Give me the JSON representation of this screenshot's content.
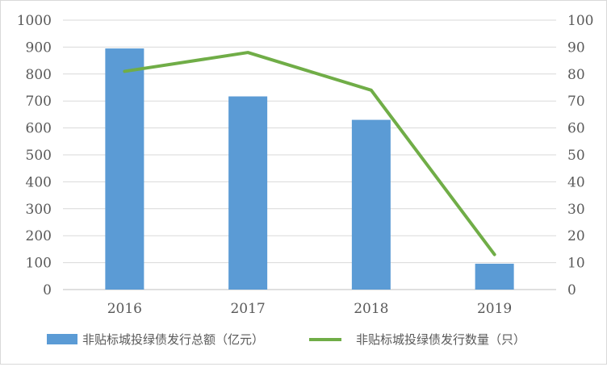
{
  "chart_data": {
    "type": "bar",
    "title": "",
    "categories": [
      "2016",
      "2017",
      "2018",
      "2019"
    ],
    "y_left": {
      "ylim": [
        0,
        1000
      ],
      "ticks": [
        0,
        100,
        200,
        300,
        400,
        500,
        600,
        700,
        800,
        900,
        1000
      ]
    },
    "y_right": {
      "ylim": [
        0,
        100
      ],
      "ticks": [
        0,
        10,
        20,
        30,
        40,
        50,
        60,
        70,
        80,
        90,
        100
      ]
    },
    "grid": true,
    "legend_position": "bottom",
    "series": [
      {
        "name": "非贴标城投绿债发行总额（亿元）",
        "type": "bar",
        "axis": "left",
        "color": "#5b9bd5",
        "values": [
          895,
          717,
          630,
          96
        ]
      },
      {
        "name": "非贴标城投绿债发行数量（只）",
        "type": "line",
        "axis": "right",
        "color": "#70ad47",
        "values": [
          81,
          88,
          74,
          13
        ]
      }
    ]
  }
}
